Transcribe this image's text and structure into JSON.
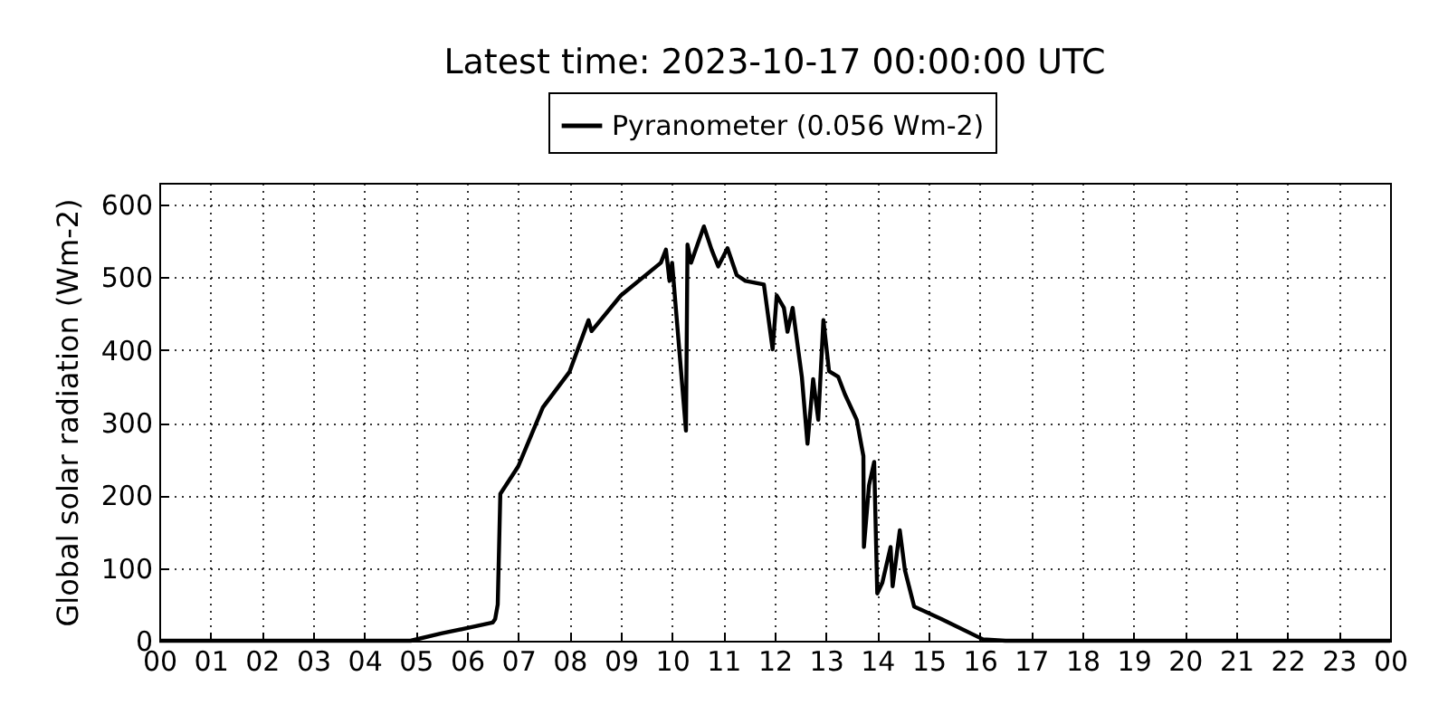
{
  "chart_data": {
    "type": "line",
    "title": "Latest time: 2023-10-17 00:00:00 UTC",
    "ylabel": "Global solar radiation (Wm-2)",
    "xlim": [
      0,
      24
    ],
    "ylim": [
      0,
      630
    ],
    "xticks": [
      {
        "value": 0,
        "label": "00"
      },
      {
        "value": 1,
        "label": "01"
      },
      {
        "value": 2,
        "label": "02"
      },
      {
        "value": 3,
        "label": "03"
      },
      {
        "value": 4,
        "label": "04"
      },
      {
        "value": 5,
        "label": "05"
      },
      {
        "value": 6,
        "label": "06"
      },
      {
        "value": 7,
        "label": "07"
      },
      {
        "value": 8,
        "label": "08"
      },
      {
        "value": 9,
        "label": "09"
      },
      {
        "value": 10,
        "label": "10"
      },
      {
        "value": 11,
        "label": "11"
      },
      {
        "value": 12,
        "label": "12"
      },
      {
        "value": 13,
        "label": "13"
      },
      {
        "value": 14,
        "label": "14"
      },
      {
        "value": 15,
        "label": "15"
      },
      {
        "value": 16,
        "label": "16"
      },
      {
        "value": 17,
        "label": "17"
      },
      {
        "value": 18,
        "label": "18"
      },
      {
        "value": 19,
        "label": "19"
      },
      {
        "value": 20,
        "label": "20"
      },
      {
        "value": 21,
        "label": "21"
      },
      {
        "value": 22,
        "label": "22"
      },
      {
        "value": 23,
        "label": "23"
      },
      {
        "value": 24,
        "label": "00"
      }
    ],
    "yticks": [
      0,
      100,
      200,
      300,
      400,
      500,
      600
    ],
    "grid": true,
    "legend": "top",
    "line_style": "solid",
    "series": [
      {
        "name": "Pyranometer (0.056 Wm-2)",
        "color": "#000000",
        "x": [
          0,
          4.9,
          5.5,
          6.5,
          6.55,
          6.6,
          6.65,
          7.0,
          7.48,
          8.0,
          8.37,
          8.43,
          9.0,
          9.78,
          9.88,
          9.95,
          10.0,
          10.27,
          10.3,
          10.37,
          10.62,
          10.77,
          10.9,
          11.08,
          11.26,
          11.43,
          11.79,
          11.96,
          12.04,
          12.18,
          12.25,
          12.35,
          12.53,
          12.64,
          12.75,
          12.85,
          12.95,
          13.06,
          13.24,
          13.37,
          13.6,
          13.73,
          13.74,
          13.84,
          13.94,
          14.0,
          14.1,
          14.26,
          14.3,
          14.44,
          14.54,
          14.72,
          15.25,
          16.06,
          16.5,
          24
        ],
        "values": [
          0,
          0,
          10,
          25,
          30,
          50,
          202,
          240,
          321,
          370,
          441,
          426,
          475,
          520,
          538,
          495,
          520,
          289,
          545,
          520,
          570,
          538,
          515,
          540,
          503,
          495,
          490,
          401,
          475,
          458,
          425,
          458,
          363,
          271,
          360,
          304,
          441,
          371,
          363,
          339,
          304,
          254,
          129,
          214,
          246,
          65,
          80,
          129,
          75,
          152,
          97,
          47,
          30,
          2,
          0,
          0
        ]
      }
    ]
  }
}
